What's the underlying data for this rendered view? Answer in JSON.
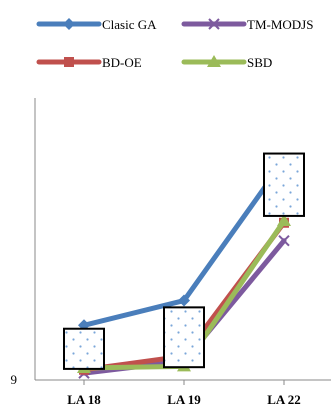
{
  "chart_data": {
    "type": "line",
    "categories": [
      "LA 18",
      "LA 19",
      "LA 22"
    ],
    "y_tick_labels": [
      "9"
    ],
    "ylim": [
      9,
      42
    ],
    "series": [
      {
        "name": "Clasic GA",
        "color": "#4a7ebb",
        "marker": "diamond",
        "values": [
          15.4,
          18.3,
          34.7
        ]
      },
      {
        "name": "TM-MODJS",
        "color": "#7d5a9e",
        "marker": "x",
        "values": [
          9.8,
          11.2,
          25.3
        ]
      },
      {
        "name": "BD-OE",
        "color": "#c0504d",
        "marker": "square",
        "values": [
          10.2,
          11.8,
          27.4
        ]
      },
      {
        "name": "SBD",
        "color": "#9bbb59",
        "marker": "triangle",
        "values": [
          10.4,
          10.6,
          27.6
        ]
      }
    ],
    "boxes": [
      {
        "category": "LA 18",
        "low": 10.3,
        "high": 15.0
      },
      {
        "category": "LA 19",
        "low": 10.5,
        "high": 17.5
      },
      {
        "category": "LA 22",
        "low": 28.2,
        "high": 35.5
      }
    ],
    "legend_position": "top"
  }
}
